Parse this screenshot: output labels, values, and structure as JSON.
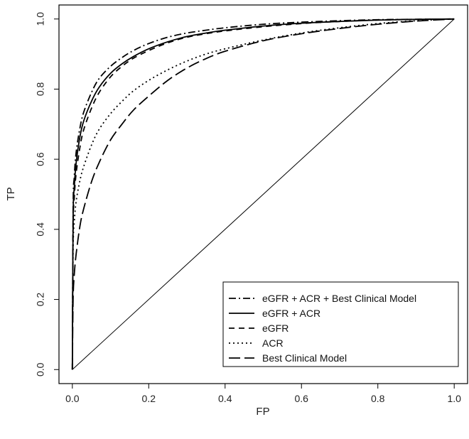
{
  "chart_data": {
    "type": "line",
    "title": "",
    "xlabel": "FP",
    "ylabel": "TP",
    "xlim": [
      -0.035,
      1.035
    ],
    "ylim": [
      -0.04,
      1.04
    ],
    "x_ticks": [
      0.0,
      0.2,
      0.4,
      0.6,
      0.8,
      1.0
    ],
    "y_ticks": [
      0.0,
      0.2,
      0.4,
      0.6,
      0.8,
      1.0
    ],
    "x_tick_labels": [
      "0.0",
      "0.2",
      "0.4",
      "0.6",
      "0.8",
      "1.0"
    ],
    "y_tick_labels": [
      "0.0",
      "0.2",
      "0.4",
      "0.6",
      "0.8",
      "1.0"
    ],
    "grid": false,
    "legend_position": "bottom-right",
    "reference_line": {
      "x": [
        0,
        1
      ],
      "y": [
        0,
        1
      ]
    },
    "series": [
      {
        "name": "eGFR + ACR + Best Clinical Model",
        "line_style": "dashdot",
        "x": [
          0,
          0.002,
          0.005,
          0.01,
          0.02,
          0.03,
          0.05,
          0.07,
          0.1,
          0.13,
          0.16,
          0.2,
          0.25,
          0.3,
          0.35,
          0.4,
          0.5,
          0.6,
          0.7,
          0.8,
          0.9,
          1.0
        ],
        "y": [
          0,
          0.46,
          0.55,
          0.62,
          0.69,
          0.735,
          0.79,
          0.83,
          0.865,
          0.89,
          0.91,
          0.93,
          0.948,
          0.96,
          0.968,
          0.975,
          0.985,
          0.991,
          0.995,
          0.998,
          0.999,
          1.0
        ]
      },
      {
        "name": "eGFR + ACR",
        "line_style": "solid",
        "x": [
          0,
          0.002,
          0.005,
          0.01,
          0.02,
          0.03,
          0.05,
          0.07,
          0.1,
          0.13,
          0.16,
          0.2,
          0.25,
          0.3,
          0.35,
          0.4,
          0.5,
          0.6,
          0.7,
          0.8,
          0.9,
          1.0
        ],
        "y": [
          0,
          0.43,
          0.52,
          0.59,
          0.665,
          0.71,
          0.765,
          0.805,
          0.845,
          0.872,
          0.893,
          0.915,
          0.935,
          0.95,
          0.96,
          0.968,
          0.98,
          0.988,
          0.993,
          0.997,
          0.999,
          1.0
        ]
      },
      {
        "name": "eGFR",
        "line_style": "dashed",
        "x": [
          0,
          0.002,
          0.005,
          0.01,
          0.02,
          0.03,
          0.05,
          0.07,
          0.1,
          0.13,
          0.16,
          0.2,
          0.25,
          0.3,
          0.35,
          0.4,
          0.5,
          0.6,
          0.7,
          0.8,
          0.9,
          1.0
        ],
        "y": [
          0,
          0.4,
          0.49,
          0.56,
          0.635,
          0.685,
          0.745,
          0.79,
          0.835,
          0.865,
          0.888,
          0.91,
          0.932,
          0.948,
          0.958,
          0.966,
          0.978,
          0.987,
          0.993,
          0.997,
          0.999,
          1.0
        ]
      },
      {
        "name": "ACR",
        "line_style": "dotted",
        "x": [
          0,
          0.002,
          0.005,
          0.01,
          0.02,
          0.03,
          0.05,
          0.07,
          0.1,
          0.13,
          0.16,
          0.2,
          0.25,
          0.3,
          0.35,
          0.4,
          0.5,
          0.6,
          0.7,
          0.8,
          0.9,
          1.0
        ],
        "y": [
          0,
          0.34,
          0.42,
          0.48,
          0.54,
          0.58,
          0.64,
          0.685,
          0.73,
          0.765,
          0.795,
          0.825,
          0.855,
          0.88,
          0.9,
          0.915,
          0.94,
          0.96,
          0.975,
          0.987,
          0.995,
          1.0
        ]
      },
      {
        "name": "Best Clinical Model",
        "line_style": "longdash",
        "x": [
          0,
          0.002,
          0.005,
          0.01,
          0.02,
          0.03,
          0.05,
          0.07,
          0.1,
          0.13,
          0.16,
          0.2,
          0.25,
          0.3,
          0.35,
          0.4,
          0.5,
          0.6,
          0.7,
          0.8,
          0.9,
          1.0
        ],
        "y": [
          0,
          0.2,
          0.27,
          0.33,
          0.41,
          0.46,
          0.535,
          0.59,
          0.655,
          0.7,
          0.74,
          0.78,
          0.825,
          0.86,
          0.887,
          0.908,
          0.938,
          0.958,
          0.973,
          0.985,
          0.994,
          1.0
        ]
      }
    ]
  }
}
